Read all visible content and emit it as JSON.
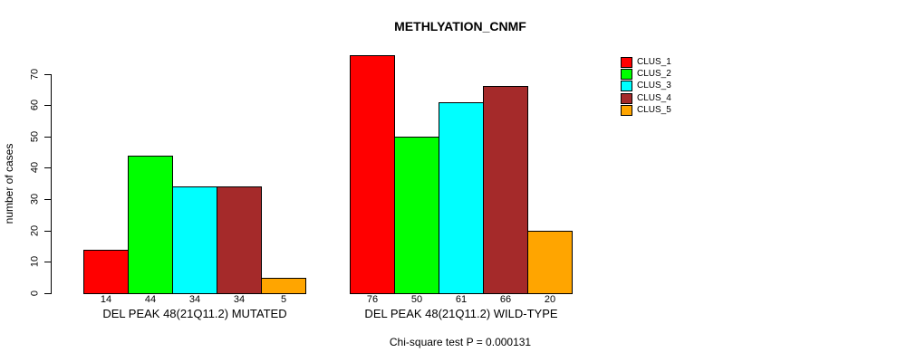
{
  "chart_data": {
    "type": "bar",
    "title": "METHLYATION_CNMF",
    "ylabel": "number of cases",
    "ylim": [
      0,
      70
    ],
    "yticks": [
      0,
      10,
      20,
      30,
      40,
      50,
      60,
      70
    ],
    "categories": [
      "DEL PEAK 48(21Q11.2) MUTATED",
      "DEL PEAK 48(21Q11.2) WILD-TYPE"
    ],
    "series": [
      {
        "name": "CLUS_1",
        "color": "#FF0000",
        "values": [
          14,
          76
        ]
      },
      {
        "name": "CLUS_2",
        "color": "#00FF00",
        "values": [
          44,
          50
        ]
      },
      {
        "name": "CLUS_3",
        "color": "#00FFFF",
        "values": [
          34,
          61
        ]
      },
      {
        "name": "CLUS_4",
        "color": "#A52A2A",
        "values": [
          34,
          66
        ]
      },
      {
        "name": "CLUS_5",
        "color": "#FFA500",
        "values": [
          5,
          20
        ]
      }
    ],
    "bar_value_labels_shown": true,
    "annotation": "Chi-square test P = 0.000131",
    "legend_position": "right",
    "grid": false,
    "axis_color": "#000000",
    "background_color": "#FFFFFF"
  }
}
